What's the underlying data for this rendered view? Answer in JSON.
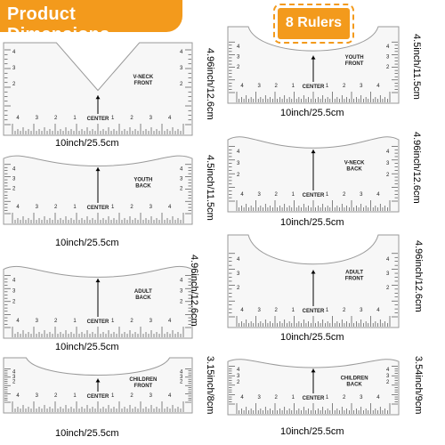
{
  "banner": {
    "title": "Product Dimensions"
  },
  "badge": {
    "label": "8 Rulers"
  },
  "colors": {
    "accent": "#f39a1c",
    "ruler_fill": "#f7f7f7",
    "ruler_stroke": "#9a9a9a"
  },
  "rulers": [
    {
      "name": "V-NECK FRONT",
      "line1": "V-NECK",
      "line2": "FRONT",
      "center": "CENTER",
      "width": "10inch/25.5cm",
      "height": "4.96inch/12.6cm",
      "shape": "vneck",
      "numbers": [
        "4",
        "3",
        "2",
        "1",
        "1",
        "2",
        "3",
        "4"
      ]
    },
    {
      "name": "YOUTH FRONT",
      "line1": "YOUTH",
      "line2": "FRONT",
      "center": "CENTER",
      "width": "10inch/25.5cm",
      "height": "4.5inch/11.5cm",
      "shape": "scoop",
      "numbers": [
        "4",
        "3",
        "2",
        "1",
        "1",
        "2",
        "3",
        "4"
      ]
    },
    {
      "name": "YOUTH BACK",
      "line1": "YOUTH",
      "line2": "BACK",
      "center": "CENTER",
      "width": "10inch/25.5cm",
      "height": "4.5inch/11.5cm",
      "shape": "shallow",
      "numbers": [
        "4",
        "3",
        "2",
        "1",
        "1",
        "2",
        "3",
        "4"
      ]
    },
    {
      "name": "V-NECK BACK",
      "line1": "V-NECK",
      "line2": "BACK",
      "center": "CENTER",
      "width": "10inch/25.5cm",
      "height": "4.96inch/12.6cm",
      "shape": "shallow",
      "numbers": [
        "4",
        "3",
        "2",
        "1",
        "1",
        "2",
        "3",
        "4"
      ]
    },
    {
      "name": "ADULT BACK",
      "line1": "ADULT",
      "line2": "BACK",
      "center": "CENTER",
      "width": "10inch/25.5cm",
      "height": "4.96inch/12.6cm",
      "shape": "shallow",
      "numbers": [
        "4",
        "3",
        "2",
        "1",
        "1",
        "2",
        "3",
        "4"
      ]
    },
    {
      "name": "ADULT FRONT",
      "line1": "ADULT",
      "line2": "FRONT",
      "center": "CENTER",
      "width": "10inch/25.5cm",
      "height": "4.96inch/12.6cm",
      "shape": "scoop",
      "numbers": [
        "4",
        "3",
        "2",
        "1",
        "1",
        "2",
        "3",
        "4"
      ]
    },
    {
      "name": "CHILDREN FRONT",
      "line1": "CHILDREN",
      "line2": "FRONT",
      "center": "CENTER",
      "width": "10inch/25.5cm",
      "height": "3.15inch/8cm",
      "shape": "scoop",
      "numbers": [
        "4",
        "3",
        "2",
        "1",
        "1",
        "2",
        "3",
        "4"
      ]
    },
    {
      "name": "CHILDREN BACK",
      "line1": "CHILDREN",
      "line2": "BACK",
      "center": "CENTER",
      "width": "10inch/25.5cm",
      "height": "3.54inch/9cm",
      "shape": "shallow",
      "numbers": [
        "4",
        "3",
        "2",
        "1",
        "1",
        "2",
        "3",
        "4"
      ]
    }
  ]
}
